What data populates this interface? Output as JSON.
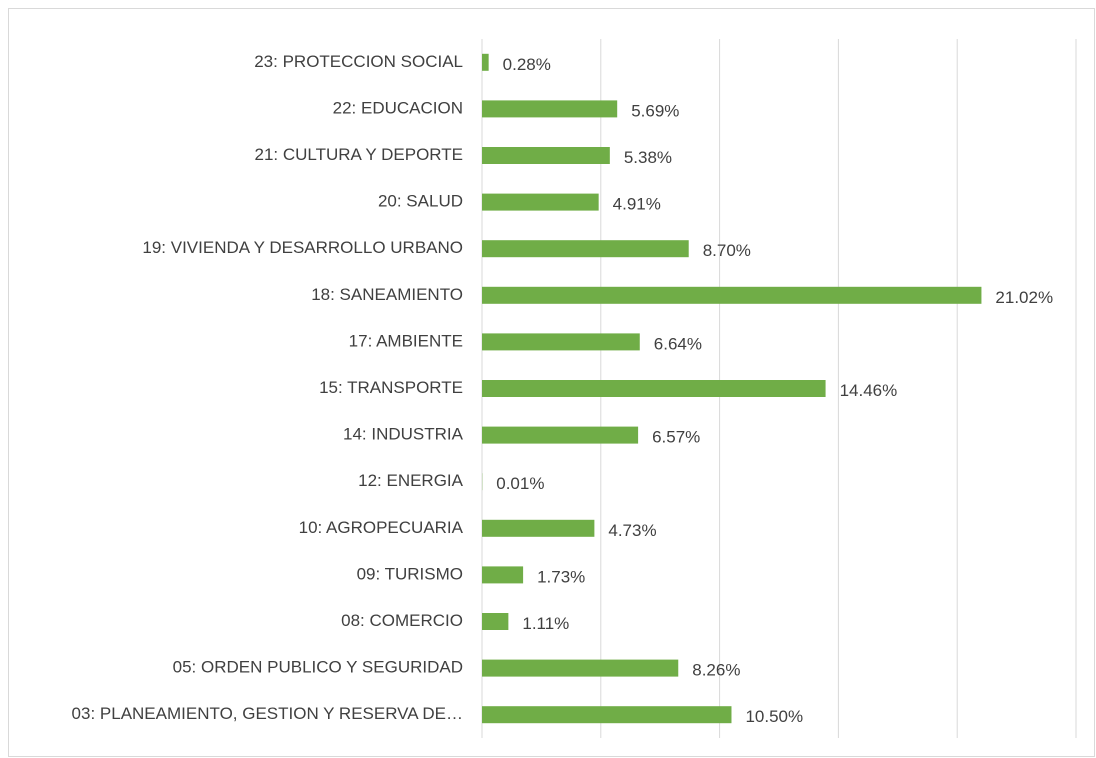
{
  "chart_data": {
    "type": "bar",
    "orientation": "horizontal",
    "categories": [
      "23: PROTECCION SOCIAL",
      "22: EDUCACION",
      "21: CULTURA Y DEPORTE",
      "20: SALUD",
      "19: VIVIENDA Y DESARROLLO URBANO",
      "18: SANEAMIENTO",
      "17: AMBIENTE",
      "15: TRANSPORTE",
      "14: INDUSTRIA",
      "12: ENERGIA",
      "10: AGROPECUARIA",
      "09: TURISMO",
      "08: COMERCIO",
      "05: ORDEN PUBLICO Y SEGURIDAD",
      "03: PLANEAMIENTO, GESTION Y RESERVA DE…"
    ],
    "values": [
      0.28,
      5.69,
      5.38,
      4.91,
      8.7,
      21.02,
      6.64,
      14.46,
      6.57,
      0.01,
      4.73,
      1.73,
      1.11,
      8.26,
      10.5
    ],
    "value_labels": [
      "0.28%",
      "5.69%",
      "5.38%",
      "4.91%",
      "8.70%",
      "21.02%",
      "6.64%",
      "14.46%",
      "6.57%",
      "0.01%",
      "4.73%",
      "1.73%",
      "1.11%",
      "8.26%",
      "10.50%"
    ],
    "color": "#70ad47",
    "xlim": [
      0,
      25
    ],
    "xticks": [
      0,
      5,
      10,
      15,
      20,
      25
    ],
    "grid": true
  }
}
